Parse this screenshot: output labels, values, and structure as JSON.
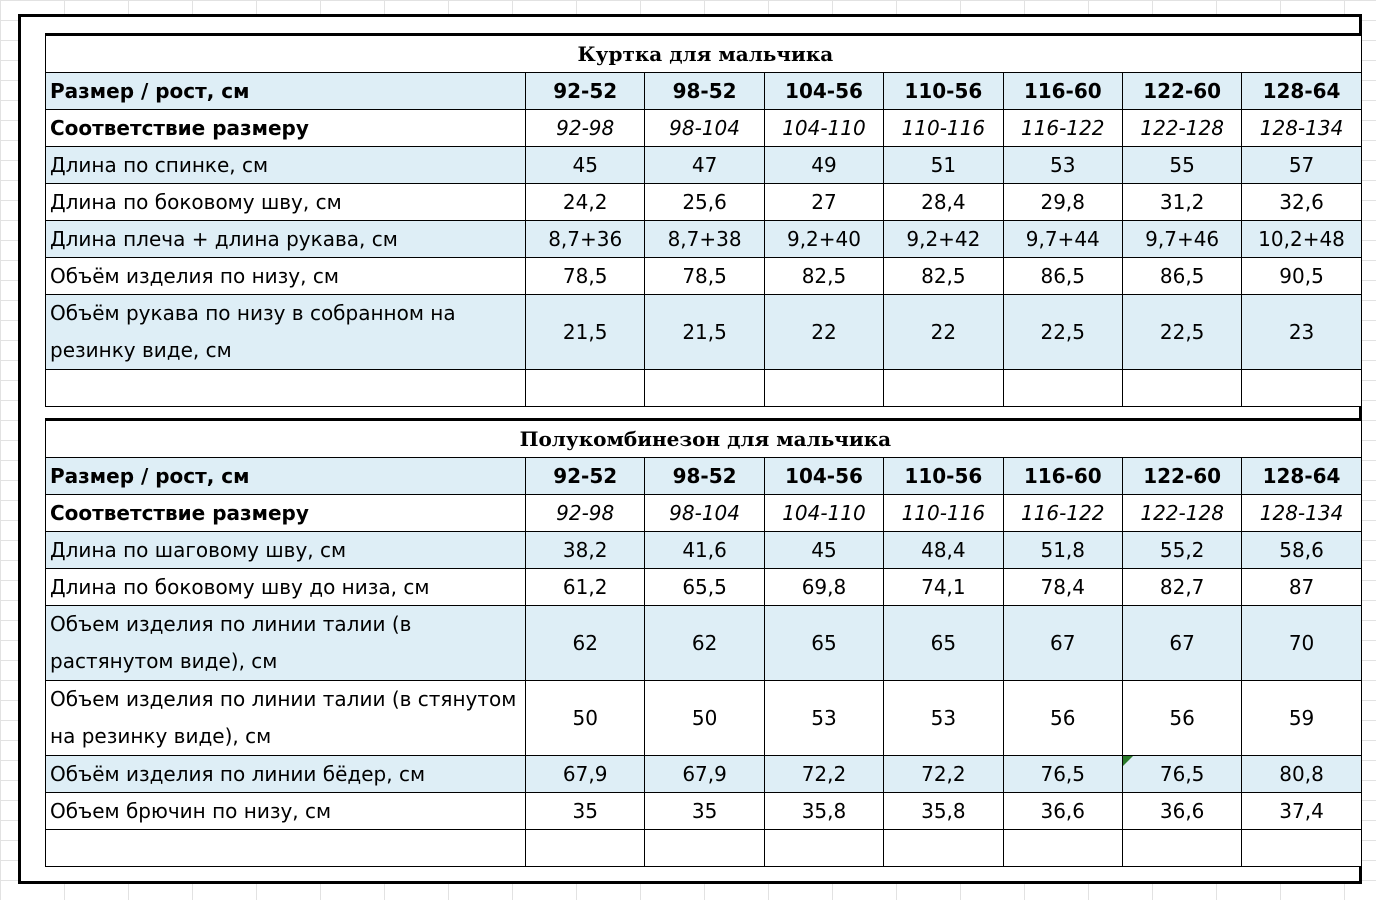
{
  "table1": {
    "title": "Куртка для мальчика",
    "rows": [
      {
        "label": "Размер / рост, см",
        "values": [
          "92-52",
          "98-52",
          "104-56",
          "110-56",
          "116-60",
          "122-60",
          "128-64"
        ]
      },
      {
        "label": "Соответствие размеру",
        "values": [
          "92-98",
          "98-104",
          "104-110",
          "110-116",
          "116-122",
          "122-128",
          "128-134"
        ]
      },
      {
        "label": "Длина по спинке, см",
        "values": [
          "45",
          "47",
          "49",
          "51",
          "53",
          "55",
          "57"
        ]
      },
      {
        "label": "Длина по боковому шву, см",
        "values": [
          "24,2",
          "25,6",
          "27",
          "28,4",
          "29,8",
          "31,2",
          "32,6"
        ]
      },
      {
        "label": "Длина плеча + длина рукава, см",
        "values": [
          "8,7+36",
          "8,7+38",
          "9,2+40",
          "9,2+42",
          "9,7+44",
          "9,7+46",
          "10,2+48"
        ]
      },
      {
        "label": "Объём изделия по низу, см",
        "values": [
          "78,5",
          "78,5",
          "82,5",
          "82,5",
          "86,5",
          "86,5",
          "90,5"
        ]
      },
      {
        "label": "Объём рукава по низу в собранном на резинку виде, см",
        "values": [
          "21,5",
          "21,5",
          "22",
          "22",
          "22,5",
          "22,5",
          "23"
        ]
      }
    ]
  },
  "table2": {
    "title": "Полукомбинезон для мальчика",
    "rows": [
      {
        "label": "Размер / рост, см",
        "values": [
          "92-52",
          "98-52",
          "104-56",
          "110-56",
          "116-60",
          "122-60",
          "128-64"
        ]
      },
      {
        "label": "Соответствие размеру",
        "values": [
          "92-98",
          "98-104",
          "104-110",
          "110-116",
          "116-122",
          "122-128",
          "128-134"
        ]
      },
      {
        "label": "Длина по шаговому шву, см",
        "values": [
          "38,2",
          "41,6",
          "45",
          "48,4",
          "51,8",
          "55,2",
          "58,6"
        ]
      },
      {
        "label": "Длина по боковому шву до низа, см",
        "values": [
          "61,2",
          "65,5",
          "69,8",
          "74,1",
          "78,4",
          "82,7",
          "87"
        ]
      },
      {
        "label": "Объем изделия по линии талии (в растянутом виде), см",
        "values": [
          "62",
          "62",
          "65",
          "65",
          "67",
          "67",
          "70"
        ]
      },
      {
        "label": "Объем изделия по линии талии (в стянутом на резинку виде), см",
        "values": [
          "50",
          "50",
          "53",
          "53",
          "56",
          "56",
          "59"
        ]
      },
      {
        "label": "Объём изделия по линии бёдер, см",
        "values": [
          "67,9",
          "67,9",
          "72,2",
          "72,2",
          "76,5",
          "76,5",
          "80,8"
        ]
      },
      {
        "label": "Объем брючин по низу, см",
        "values": [
          "35",
          "35",
          "35,8",
          "35,8",
          "36,6",
          "36,6",
          "37,4"
        ]
      }
    ]
  },
  "colors": {
    "row_highlight": "#deeef6",
    "border": "#000000",
    "comment_marker": "#2a7a2a"
  }
}
